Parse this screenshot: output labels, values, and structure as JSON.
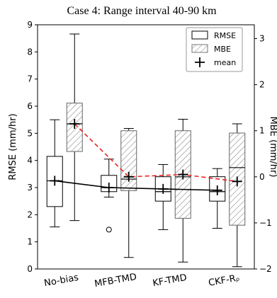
{
  "chart_data": {
    "type": "box",
    "title": "Case 4: Range interval 40-90 km",
    "categories": [
      "No-bias",
      "MFB-TMD",
      "KF-TMD",
      "CKF-Rᵨ"
    ],
    "ylabel_left": "RMSE (mm/hr)",
    "ylabel_right": "MBE (mm/hr)",
    "ylim_left": [
      0,
      9
    ],
    "ylim_right": [
      -2,
      3.3
    ],
    "yticks_left": [
      0,
      1,
      2,
      3,
      4,
      5,
      6,
      7,
      8,
      9
    ],
    "yticks_right": [
      -2,
      -1,
      0,
      1,
      2,
      3
    ],
    "legend": {
      "placement": "top-right",
      "entries": [
        {
          "label": "RMSE",
          "style": "open-box"
        },
        {
          "label": "MBE",
          "style": "hatched-box"
        },
        {
          "label": "mean",
          "style": "plus-marker"
        }
      ]
    },
    "series": [
      {
        "name": "RMSE",
        "axis": "left",
        "boxes": [
          {
            "whisker_low": 1.55,
            "q1": 2.3,
            "median": 3.25,
            "q3": 4.15,
            "whisker_high": 5.5,
            "mean": 3.25,
            "outliers": []
          },
          {
            "whisker_low": 2.65,
            "q1": 2.85,
            "median": 3.0,
            "q3": 3.45,
            "whisker_high": 4.05,
            "mean": 3.0,
            "outliers": [
              1.45
            ]
          },
          {
            "whisker_low": 1.45,
            "q1": 2.5,
            "median": 2.85,
            "q3": 3.4,
            "whisker_high": 3.85,
            "mean": 2.95,
            "outliers": []
          },
          {
            "whisker_low": 1.5,
            "q1": 2.5,
            "median": 2.85,
            "q3": 3.4,
            "whisker_high": 3.7,
            "mean": 2.9,
            "outliers": []
          }
        ],
        "mean_line": [
          3.25,
          3.0,
          2.95,
          2.9
        ],
        "line_color": "#000000"
      },
      {
        "name": "MBE",
        "axis": "right",
        "boxes": [
          {
            "whisker_low": -0.95,
            "q1": 0.55,
            "median": 1.15,
            "q3": 1.6,
            "whisker_high": 3.1,
            "mean": 1.15,
            "outliers": []
          },
          {
            "whisker_low": -1.75,
            "q1": -0.3,
            "median": -0.05,
            "q3": 1.0,
            "whisker_high": 1.05,
            "mean": 0.0,
            "outliers": []
          },
          {
            "whisker_low": -1.85,
            "q1": -0.9,
            "median": 0.0,
            "q3": 1.0,
            "whisker_high": 1.25,
            "mean": 0.05,
            "outliers": []
          },
          {
            "whisker_low": -1.95,
            "q1": -1.05,
            "median": 0.2,
            "q3": 0.95,
            "whisker_high": 1.15,
            "mean": -0.1,
            "outliers": []
          }
        ],
        "mean_line": [
          1.15,
          0.0,
          0.05,
          -0.1
        ],
        "line_color": "#ee2222"
      }
    ]
  }
}
